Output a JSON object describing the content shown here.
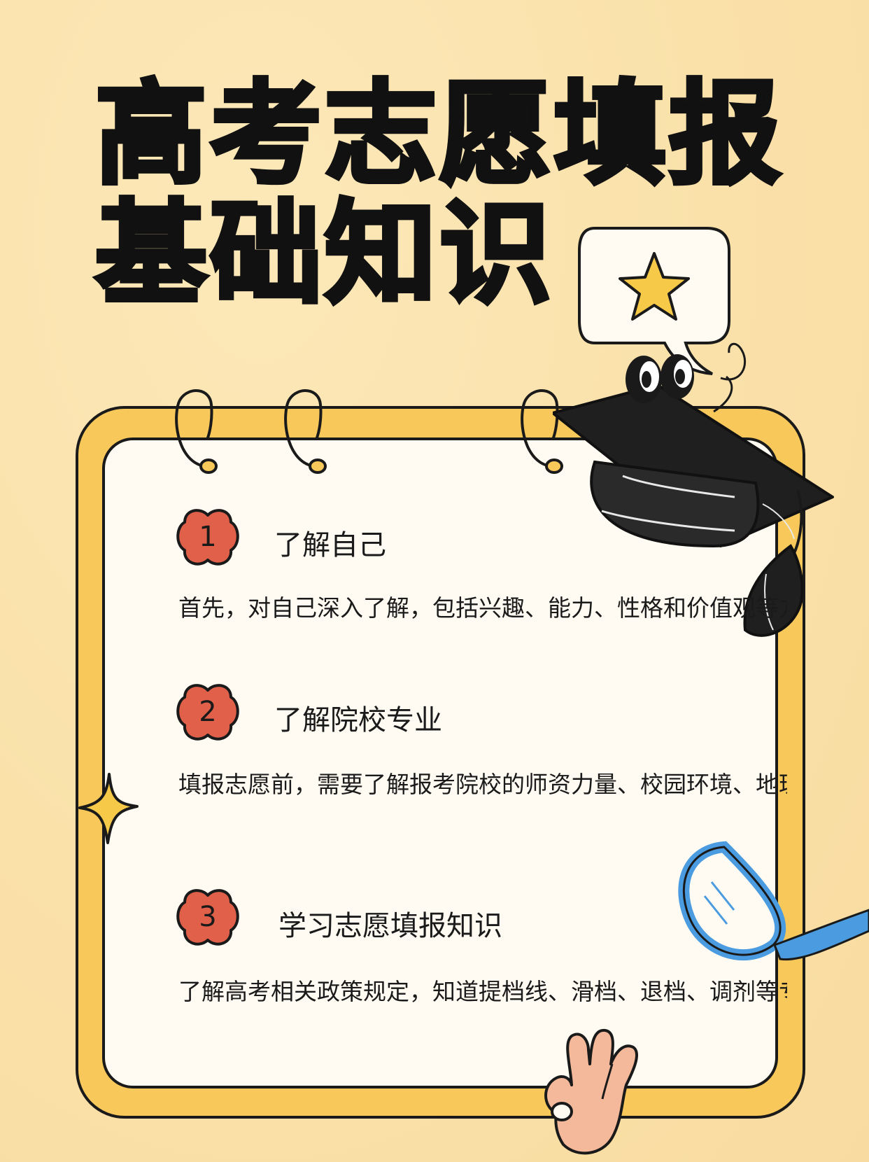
{
  "title": {
    "line1": "高考志愿填报",
    "line2": "基础知识"
  },
  "sections": [
    {
      "number": "1",
      "heading": "了解自己",
      "body": "首先，对自己深入了解，包括兴趣、能力、性格和价值观等方面"
    },
    {
      "number": "2",
      "heading": "了解院校专业",
      "body": "填报志愿前，需要了解报考院校的师资力量、校园环境、地理位置"
    },
    {
      "number": "3",
      "heading": "学习志愿填报知识",
      "body": "了解高考相关政策规定，知道提档线、滑档、退档、调剂等专业"
    }
  ],
  "colors": {
    "background": "#fbe3ad",
    "frame": "#f8c95a",
    "card": "#fffbf2",
    "badge": "#e0604a",
    "star": "#f7c948",
    "magnifier": "#4a9be0",
    "hand": "#f4b99a"
  },
  "icons": [
    "star-speech-bubble-icon",
    "graduation-cap-icon",
    "sparkle-star-icon",
    "magnifier-icon",
    "ok-hand-icon",
    "binder-ring-icon"
  ]
}
